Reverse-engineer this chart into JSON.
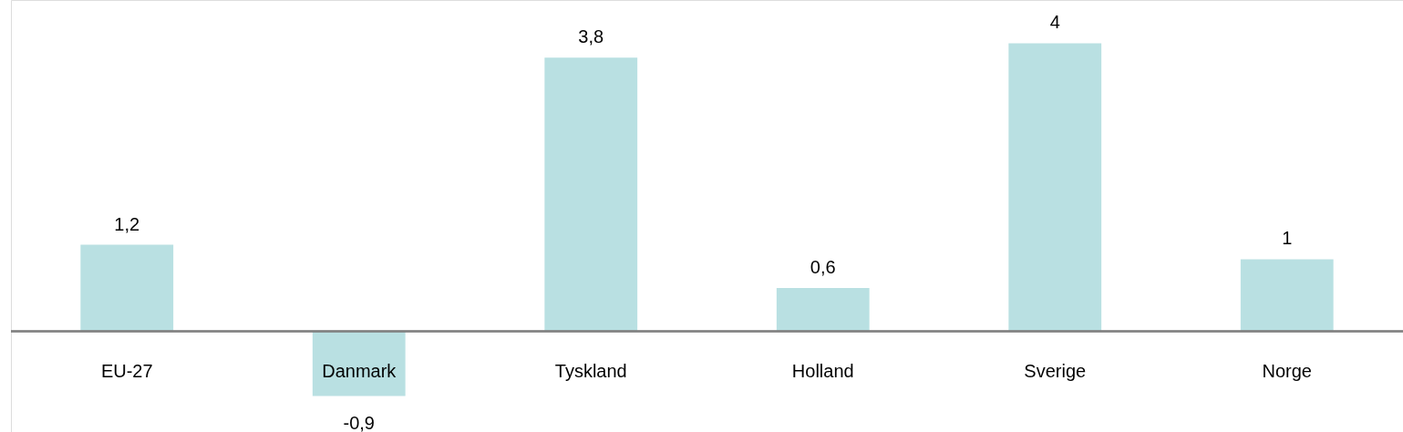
{
  "chart_data": {
    "type": "bar",
    "categories": [
      "EU-27",
      "Danmark",
      "Tyskland",
      "Holland",
      "Sverige",
      "Norge"
    ],
    "values": [
      1.2,
      -0.9,
      3.8,
      0.6,
      4,
      1
    ],
    "value_labels": [
      "1,2",
      "-0,9",
      "3,8",
      "0,6",
      "4",
      "1"
    ],
    "color": "#b9e0e2",
    "ylim": [
      -1.4,
      4.6
    ]
  }
}
